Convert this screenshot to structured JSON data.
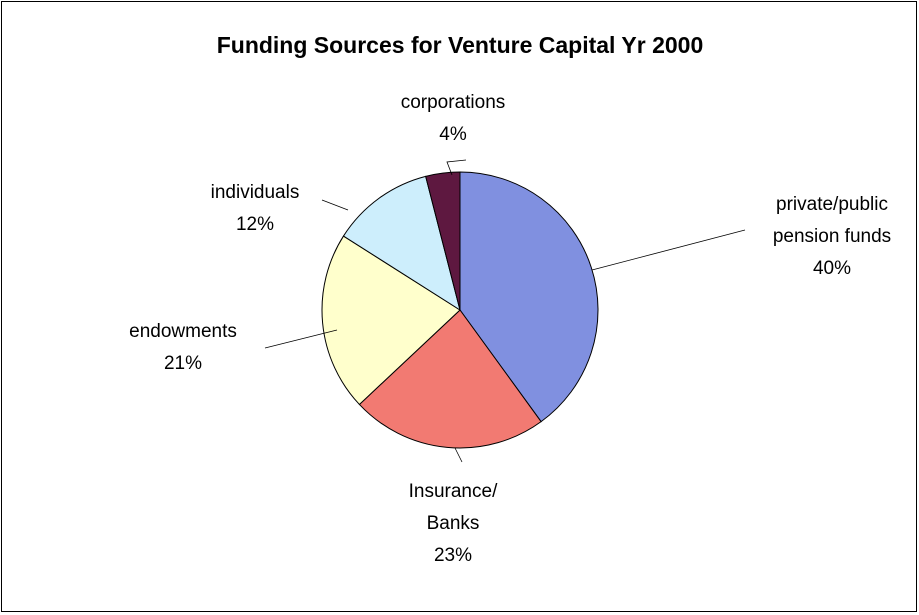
{
  "chart_data": {
    "type": "pie",
    "title": "Funding Sources for Venture Capital Yr 2000",
    "categories": [
      [
        "private/public",
        "pension funds"
      ],
      [
        "Insurance/",
        "Banks"
      ],
      [
        "endowments"
      ],
      [
        "individuals"
      ],
      [
        "corporations"
      ]
    ],
    "values": [
      40,
      23,
      21,
      12,
      4
    ],
    "value_labels": [
      "40%",
      "23%",
      "21%",
      "12%",
      "4%"
    ],
    "colors": [
      "#8090e0",
      "#f27a72",
      "#ffffcc",
      "#cdeefc",
      "#5e1840"
    ]
  }
}
